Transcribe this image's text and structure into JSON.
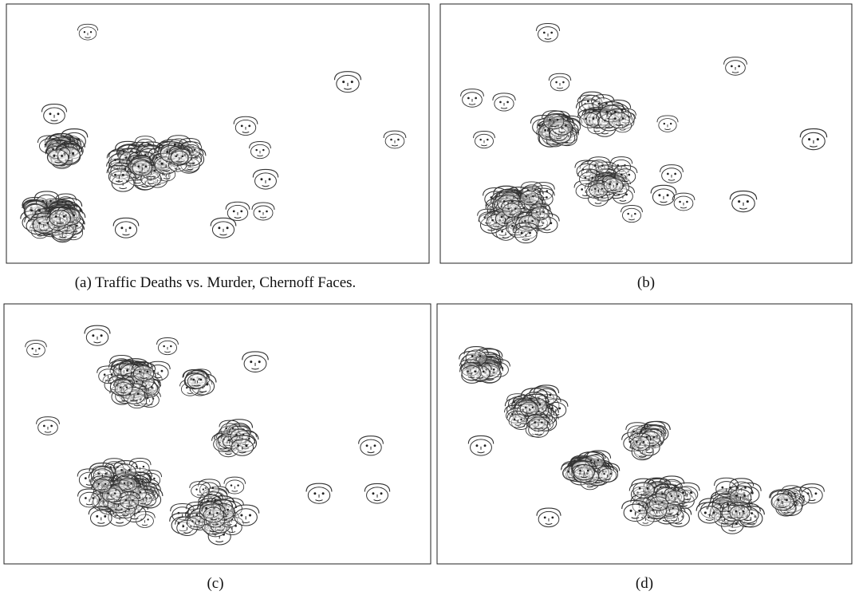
{
  "figure": {
    "captions": [
      "(a) Traffic Deaths vs. Murder, Chernoff Faces.",
      "(b)",
      "(c)",
      "(d)"
    ]
  }
}
